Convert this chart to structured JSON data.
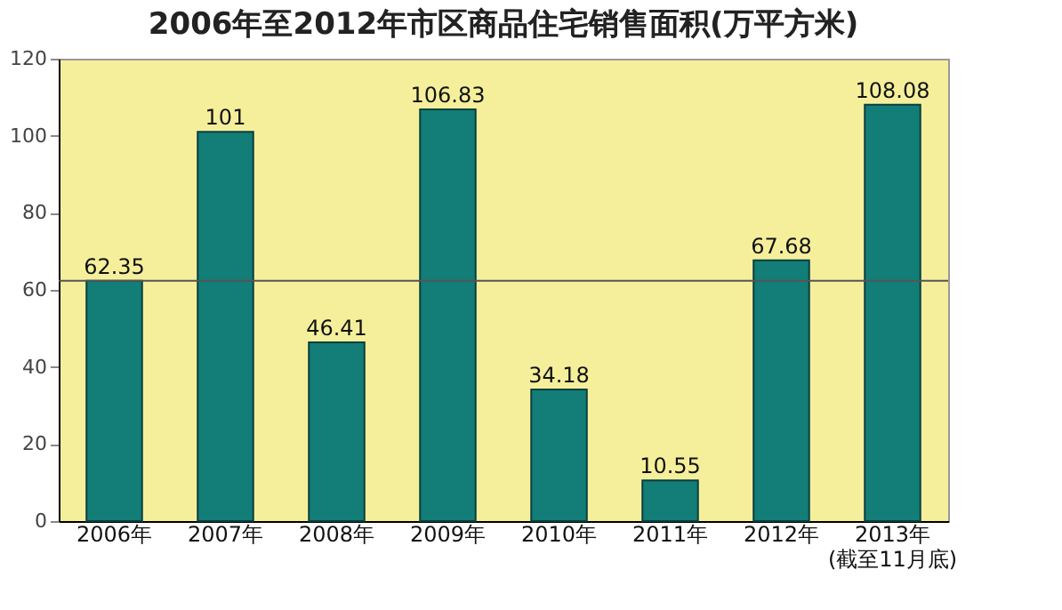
{
  "chart_data": {
    "type": "bar",
    "title": "2006年至2012年市区商品住宅销售面积(万平方米)",
    "categories": [
      "2006年",
      "2007年",
      "2008年",
      "2009年",
      "2010年",
      "2011年",
      "2012年",
      "2013年(截至11月底)"
    ],
    "values": [
      62.35,
      101,
      46.41,
      106.83,
      34.18,
      10.55,
      67.68,
      108.08
    ],
    "color": "#137d78",
    "data_labels": true,
    "ylim": [
      0,
      120
    ],
    "yticks": [
      0,
      20,
      40,
      60,
      80,
      100,
      120
    ],
    "grid": false,
    "ref_lines": [
      {
        "axis": "y",
        "value": 62.35,
        "color": "#555555"
      }
    ]
  }
}
